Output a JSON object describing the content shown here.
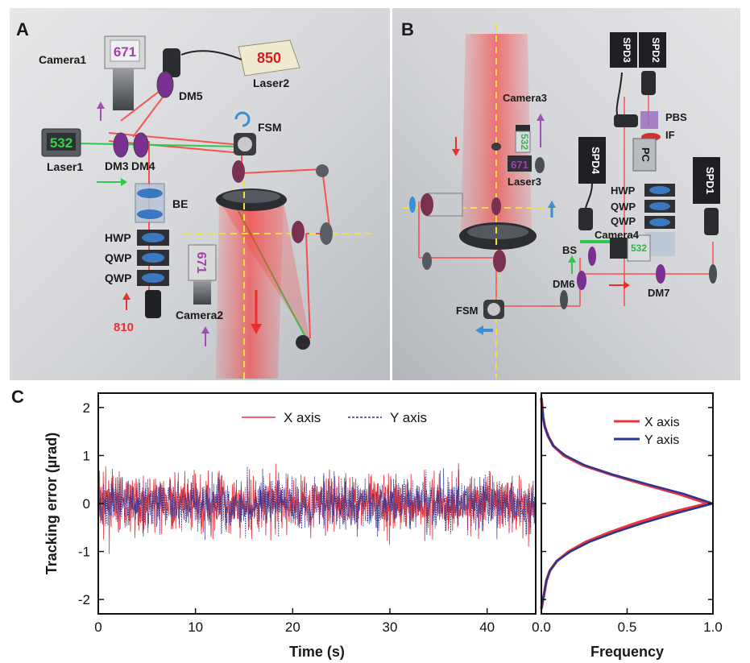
{
  "panel_a": {
    "letter": "A",
    "labels": [
      "Camera1",
      "Laser2",
      "DM5",
      "FSM",
      "Laser1",
      "DM3",
      "DM4",
      "BE",
      "HWP",
      "QWP",
      "QWP",
      "Camera2",
      "810"
    ],
    "screens": {
      "camera1": "671",
      "laser2": "850",
      "laser1": "532",
      "camera2": "671"
    }
  },
  "panel_b": {
    "letter": "B",
    "labels": [
      "SPD3",
      "SPD2",
      "Camera3",
      "PBS",
      "IF",
      "SPD4",
      "PC",
      "SPD1",
      "Laser3",
      "HWP",
      "QWP",
      "QWP",
      "BS",
      "Camera4",
      "DM6",
      "DM7",
      "FSM"
    ],
    "screens": {
      "camera3": "532",
      "laser3": "671",
      "camera4": "532"
    }
  },
  "panel_c": {
    "letter": "C",
    "chart_data": [
      {
        "type": "line",
        "title": "",
        "xlabel": "Time (s)",
        "ylabel": "Tracking error  (µrad)",
        "xlim": [
          0,
          45
        ],
        "ylim": [
          -2.3,
          2.3
        ],
        "x_ticks": [
          "0",
          "10",
          "20",
          "30",
          "40"
        ],
        "y_ticks": [
          "-2",
          "-1",
          "0",
          "1",
          "2"
        ],
        "legend_position": "top-center",
        "series": [
          {
            "name": "X axis",
            "color": "#e8343c",
            "style": "solid",
            "x": [
              0,
              45
            ],
            "envelope_low": [
              -0.9,
              -0.9
            ],
            "envelope_high": [
              0.9,
              0.9
            ],
            "peak_high": [
              1.4,
              1.4
            ],
            "peak_low": [
              -1.6,
              -1.6
            ]
          },
          {
            "name": "Y axis",
            "color": "#2a3592",
            "style": "dashed",
            "x": [
              0,
              45
            ],
            "envelope_low": [
              -0.8,
              -0.8
            ],
            "envelope_high": [
              0.8,
              0.8
            ],
            "peak_high": [
              1.5,
              1.5
            ],
            "peak_low": [
              -1.6,
              -1.6
            ]
          }
        ]
      },
      {
        "type": "line",
        "title": "",
        "xlabel": "Frequency",
        "ylabel": "",
        "xlim": [
          0,
          1.0
        ],
        "ylim": [
          -2.3,
          2.3
        ],
        "x_ticks": [
          "0.0",
          "0.5",
          "1.0"
        ],
        "legend_position": "top-right",
        "orientation": "horizontal-distribution",
        "y": [
          -2.2,
          -2.0,
          -1.8,
          -1.6,
          -1.4,
          -1.2,
          -1.0,
          -0.8,
          -0.6,
          -0.4,
          -0.2,
          0.0,
          0.2,
          0.4,
          0.6,
          0.8,
          1.0,
          1.2,
          1.4,
          1.6,
          1.8,
          2.0,
          2.2
        ],
        "series": [
          {
            "name": "X axis",
            "color": "#e8343c",
            "values": [
              0.0,
              0.01,
              0.02,
              0.03,
              0.05,
              0.09,
              0.16,
              0.26,
              0.4,
              0.56,
              0.74,
              0.97,
              0.8,
              0.6,
              0.41,
              0.24,
              0.13,
              0.07,
              0.04,
              0.02,
              0.01,
              0.005,
              0.0
            ]
          },
          {
            "name": "Y axis",
            "color": "#2a3592",
            "values": [
              0.0,
              0.01,
              0.02,
              0.03,
              0.05,
              0.09,
              0.17,
              0.28,
              0.43,
              0.6,
              0.79,
              1.0,
              0.83,
              0.62,
              0.42,
              0.25,
              0.14,
              0.07,
              0.04,
              0.02,
              0.01,
              0.005,
              0.0
            ]
          }
        ]
      }
    ]
  },
  "colors": {
    "panel_bg": "#cfd1d4",
    "beam": "#ff3030",
    "green_beam": "#2ec84a",
    "axis_line": "#f2e03a",
    "x_series": "#e8343c",
    "y_series": "#2a3592"
  }
}
